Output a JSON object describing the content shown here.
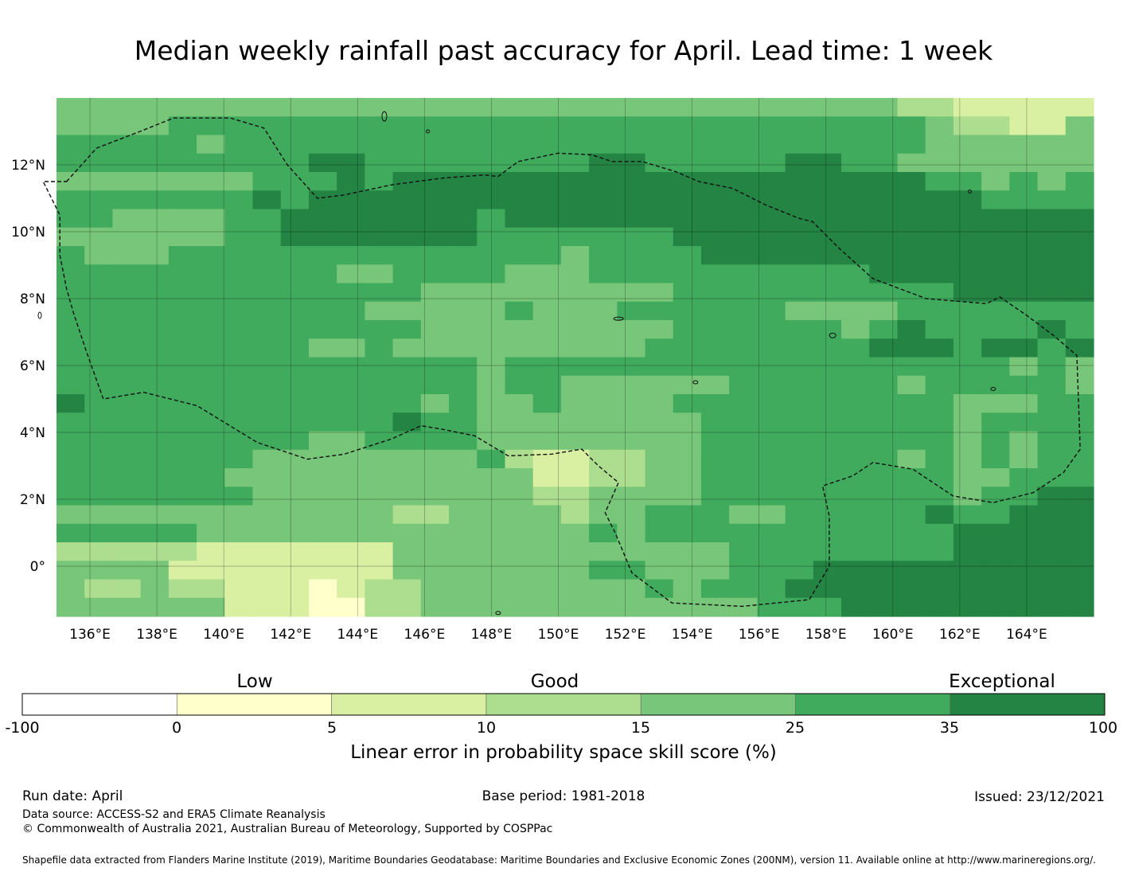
{
  "title": "Median weekly rainfall past accuracy for April. Lead time: 1 week",
  "map": {
    "lon_range": [
      135,
      166
    ],
    "lat_range": [
      -1.5,
      14
    ],
    "lon_ticks": [
      "136°E",
      "138°E",
      "140°E",
      "142°E",
      "144°E",
      "146°E",
      "148°E",
      "150°E",
      "152°E",
      "154°E",
      "156°E",
      "158°E",
      "160°E",
      "162°E",
      "164°E"
    ],
    "lat_ticks": [
      "12°N",
      "10°N",
      "8°N",
      "6°N",
      "4°N",
      "2°N",
      "0°"
    ],
    "grid": true,
    "boundary_style": "dashed",
    "skill_field": {
      "cols": 37,
      "rows": 28,
      "encoding": "one character per cell from row 0 (north) to row 27 (south); 0:<0  1:0-5  2:5-10  3:10-15  4:15-25  5:25-35  6:35-100",
      "rows_data": [
        "4444444444444444444444444444443322222",
        "4444555555555555555555555555555433224",
        "5555545555555555555555555555555444444",
        "5555555556655555555665555566554444444",
        "4444444555656666666666666666666554545",
        "5555555656666666666666666666666665555",
        "5544445566666665666666666666666666666",
        "4444445566666665555555666666666666666",
        "5444555555555555554555566666666666666",
        "5555555555445555444555555555566666666",
        "5555555555555444444444555555555566666",
        "5555555555544444544455555544445555555",
        "5555555555555444444444555555456555565",
        "5555555554454444444445555555566656656",
        "5555555555555554555555555555555555454",
        "5555555555555554554444445555554555554",
        "6555555555555454454444555555555544455",
        "5555555555556554444444455555555545555",
        "5555555554455554444444455555555545455",
        "5555555444444445322334455555554545455",
        "5555554444444444422334455555555544555",
        "5555555444444444433444455555555545566",
        "4444444444443344443445554455555655666",
        "5555544444444444444545555555555566666",
        "3333322222224444444444445555555566666",
        "4444222222224444444554445556666666666",
        "4334332221233444444445455566666666666",
        "4444442221133444444444444555666666666"
      ]
    },
    "island_labels": []
  },
  "colorbar": {
    "categories": [
      {
        "label": "Low",
        "range_start": 0,
        "range_end": 5
      },
      {
        "label": "Good",
        "range_start": 10,
        "range_end": 15
      },
      {
        "label": "Exceptional",
        "range_start": 35,
        "range_end": 100
      }
    ],
    "ticks": [
      "-100",
      "0",
      "5",
      "10",
      "15",
      "25",
      "35",
      "100"
    ],
    "colors": [
      "#ffffff",
      "#ffffcc",
      "#d9f0a3",
      "#addd8e",
      "#78c679",
      "#41ab5d",
      "#238443"
    ],
    "title": "Linear error in probability space skill score (%)"
  },
  "footer": {
    "run_date": "Run date: April",
    "base_period": "Base period: 1981-2018",
    "issued": "Issued: 23/12/2021",
    "data_source": "Data source: ACCESS-S2 and ERA5 Climate Reanalysis",
    "copyright": "© Commonwealth of Australia 2021, Australian Bureau of Meteorology, Supported by COSPPac",
    "shapefile": "Shapefile data extracted from Flanders Marine Institute (2019), Maritime Boundaries Geodatabase: Maritime Boundaries and Exclusive Economic Zones (200NM), version 11. Available online at http://www.marineregions.org/."
  }
}
